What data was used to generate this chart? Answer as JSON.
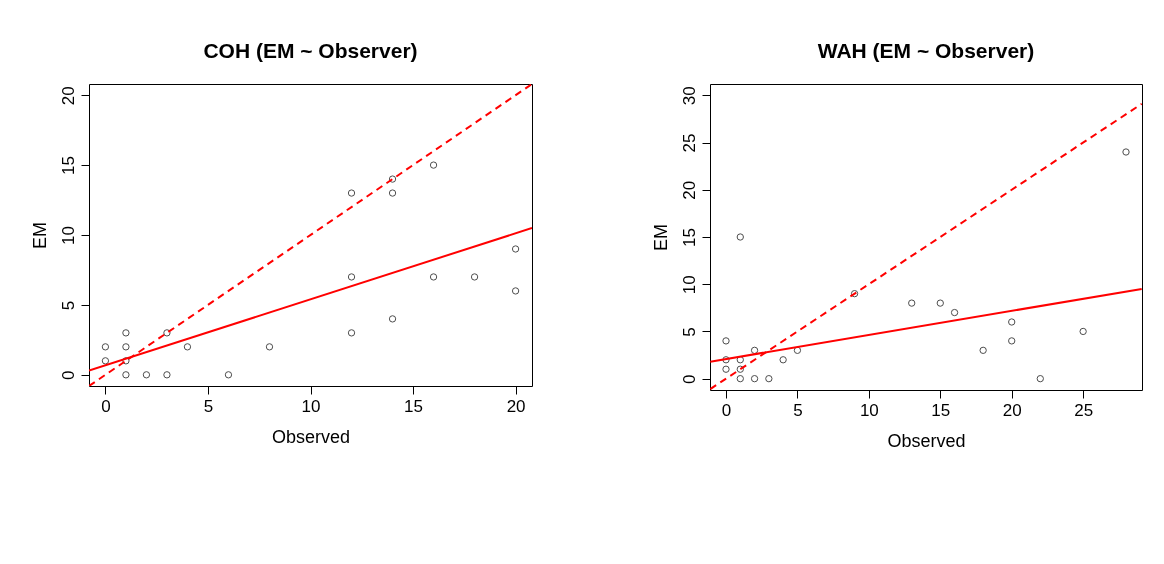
{
  "chart_data": [
    {
      "type": "scatter",
      "title": "COH (EM ~ Observer)",
      "xlabel": "Observed",
      "ylabel": "EM",
      "xlim": [
        -0.8,
        20.8
      ],
      "ylim": [
        -0.8,
        20.8
      ],
      "xticks": [
        0,
        5,
        10,
        15,
        20
      ],
      "yticks": [
        0,
        5,
        10,
        15,
        20
      ],
      "grid": false,
      "series": [
        {
          "marker": "circle",
          "color": "#000000",
          "x": [
            0,
            0,
            1,
            1,
            1,
            1,
            2,
            3,
            3,
            4,
            6,
            8,
            12,
            12,
            12,
            14,
            14,
            14,
            16,
            16,
            18,
            20,
            20
          ],
          "values": [
            2,
            1,
            3,
            2,
            1,
            0,
            0,
            3,
            0,
            2,
            0,
            2,
            13,
            7,
            3,
            14,
            13,
            4,
            15,
            7,
            7,
            9,
            6
          ]
        },
        {
          "type": "line",
          "line_style": "dashed",
          "color": "#ff0000",
          "x": [
            -0.8,
            20.8
          ],
          "values": [
            -0.8,
            20.8
          ]
        },
        {
          "type": "line",
          "line_style": "solid",
          "color": "#ff0000",
          "x": [
            -0.8,
            20.8
          ],
          "values": [
            0.3,
            10.5
          ]
        }
      ]
    },
    {
      "type": "scatter",
      "title": "WAH (EM ~ Observer)",
      "xlabel": "Observed",
      "ylabel": "EM",
      "xlim": [
        -1.12,
        29.12
      ],
      "ylim": [
        -1.2,
        31.2
      ],
      "xticks": [
        0,
        5,
        10,
        15,
        20,
        25
      ],
      "yticks": [
        0,
        5,
        10,
        15,
        20,
        25,
        30
      ],
      "grid": false,
      "series": [
        {
          "marker": "circle",
          "color": "#000000",
          "x": [
            0,
            0,
            0,
            1,
            1,
            1,
            1,
            2,
            2,
            3,
            4,
            5,
            9,
            13,
            15,
            16,
            18,
            20,
            20,
            22,
            25,
            28
          ],
          "values": [
            4,
            2,
            1,
            15,
            2,
            1,
            0,
            3,
            0,
            0,
            2,
            3,
            9,
            8,
            8,
            7,
            3,
            6,
            4,
            0,
            5,
            24
          ]
        },
        {
          "type": "line",
          "line_style": "dashed",
          "color": "#ff0000",
          "x": [
            -1.1,
            29.1
          ],
          "values": [
            -1.1,
            29.1
          ]
        },
        {
          "type": "line",
          "line_style": "solid",
          "color": "#ff0000",
          "x": [
            -1.1,
            29.1
          ],
          "values": [
            1.8,
            9.5
          ]
        }
      ]
    }
  ]
}
